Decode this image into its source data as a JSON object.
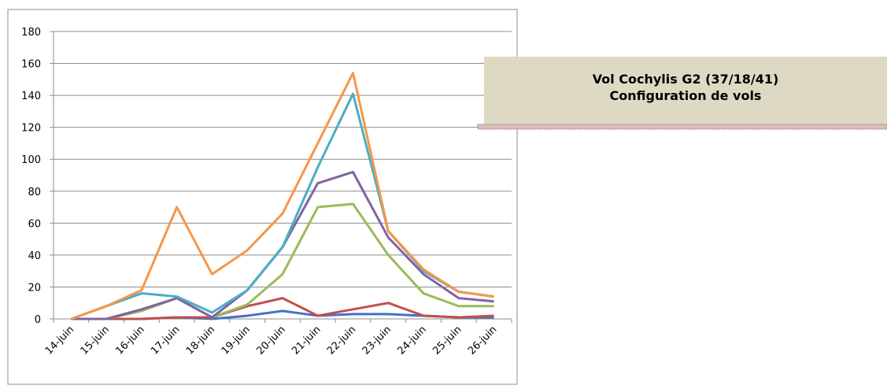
{
  "chart_data": {
    "type": "line",
    "title": "Vol Cochylis G2 (37/18/41)",
    "subtitle": "Configuration de vols",
    "categories": [
      "14-juin",
      "15-juin",
      "16-juin",
      "17-juin",
      "18-juin",
      "19-juin",
      "20-juin",
      "21-juin",
      "22-juin",
      "23-juin",
      "24-juin",
      "25-juin",
      "26-juin"
    ],
    "series": [
      {
        "color": "#4472c4",
        "values": [
          0,
          0,
          0,
          1,
          0,
          2,
          5,
          2,
          3,
          3,
          2,
          1,
          1
        ]
      },
      {
        "color": "#c0504d",
        "values": [
          0,
          0,
          0,
          1,
          1,
          8,
          13,
          2,
          6,
          10,
          2,
          1,
          2
        ]
      },
      {
        "color": "#9bbb59",
        "values": [
          0,
          0,
          5,
          13,
          1,
          9,
          28,
          70,
          72,
          40,
          16,
          8,
          8
        ]
      },
      {
        "color": "#8064a2",
        "values": [
          0,
          0,
          6,
          13,
          1,
          18,
          45,
          85,
          92,
          51,
          28,
          13,
          11
        ]
      },
      {
        "color": "#4bacc6",
        "values": [
          0,
          8,
          16,
          14,
          4,
          18,
          45,
          95,
          141,
          55,
          30,
          17,
          14
        ]
      },
      {
        "color": "#f79646",
        "values": [
          0,
          8,
          18,
          70,
          28,
          43,
          66,
          110,
          154,
          55,
          31,
          17,
          14
        ]
      }
    ],
    "ylim": [
      0,
      180
    ],
    "yticks": [
      0,
      20,
      40,
      60,
      80,
      100,
      120,
      140,
      160,
      180
    ],
    "grid": true
  }
}
